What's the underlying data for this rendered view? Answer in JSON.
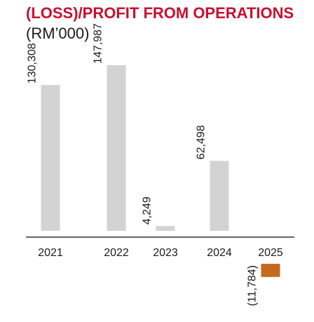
{
  "colors": {
    "title": "#c8102e",
    "positive_bar": "#d3d3d3",
    "negative_bar": "#c46a1f",
    "axis": "#333333"
  },
  "chart_data": {
    "type": "bar",
    "title": "(LOSS)/PROFIT FROM OPERATIONS",
    "subtitle": "(RM’000)",
    "categories": [
      "2021",
      "2022",
      "2023",
      "2024",
      "2025"
    ],
    "values": [
      130308,
      147987,
      4249,
      62498,
      -11784
    ],
    "data_labels": [
      "130,308",
      "147,987",
      "4,249",
      "62,498",
      "(11,784)"
    ],
    "grid": false,
    "legend": "none"
  }
}
